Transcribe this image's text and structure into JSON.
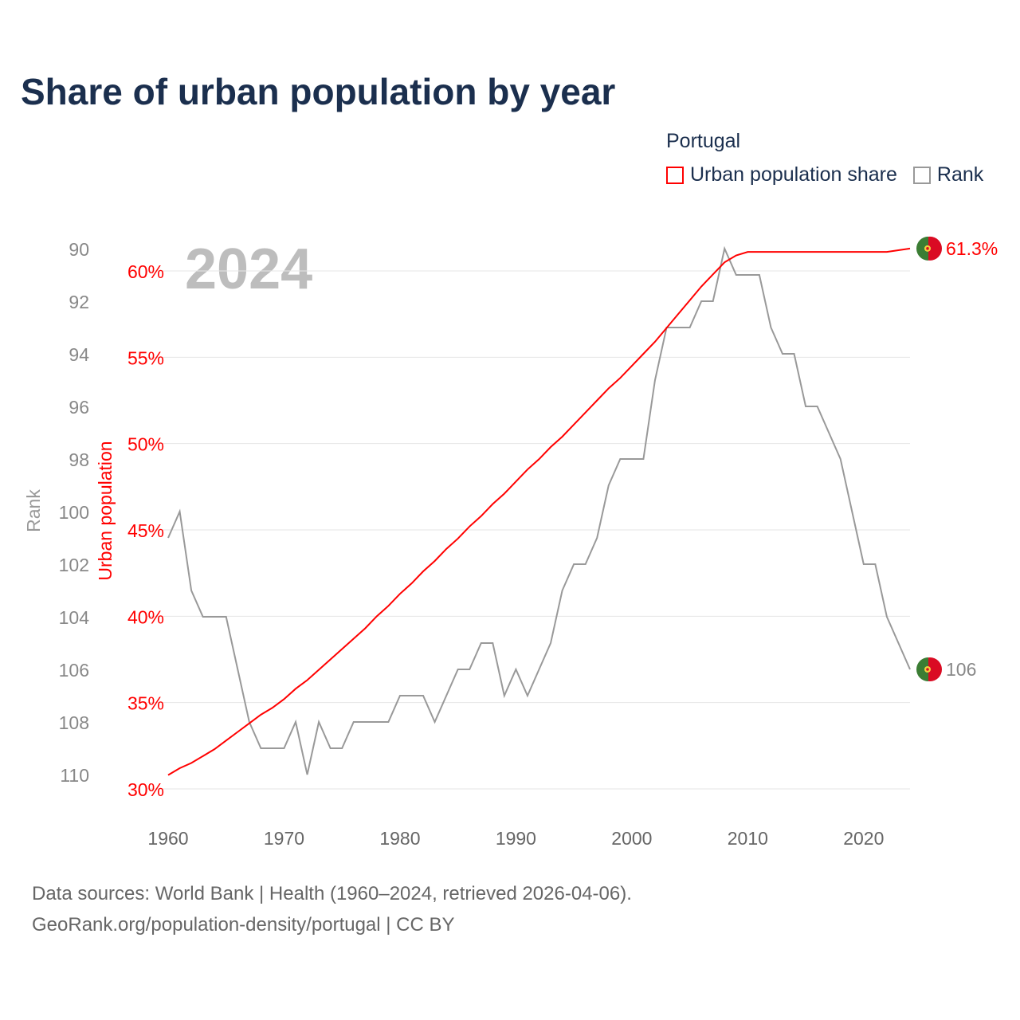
{
  "title": "Share of urban population by year",
  "legend": {
    "title": "Portugal",
    "items": [
      {
        "label": "Urban population share",
        "color": "#ff0000"
      },
      {
        "label": "Rank",
        "color": "#999999"
      }
    ]
  },
  "footer": {
    "line1": "Data sources: World Bank | Health (1960–2024, retrieved 2026-04-06).",
    "line2": "GeoRank.org/population-density/portugal | CC BY"
  },
  "chart_data": {
    "type": "line",
    "title": "Share of urban population by year",
    "year_label": "2024",
    "x": [
      1960,
      1961,
      1962,
      1963,
      1964,
      1965,
      1966,
      1967,
      1968,
      1969,
      1970,
      1971,
      1972,
      1973,
      1974,
      1975,
      1976,
      1977,
      1978,
      1979,
      1980,
      1981,
      1982,
      1983,
      1984,
      1985,
      1986,
      1987,
      1988,
      1989,
      1990,
      1991,
      1992,
      1993,
      1994,
      1995,
      1996,
      1997,
      1998,
      1999,
      2000,
      2001,
      2002,
      2003,
      2004,
      2005,
      2006,
      2007,
      2008,
      2009,
      2010,
      2011,
      2012,
      2013,
      2014,
      2015,
      2016,
      2017,
      2018,
      2019,
      2020,
      2021,
      2022,
      2023,
      2024
    ],
    "xticks": [
      "1960",
      "1970",
      "1980",
      "1990",
      "2000",
      "2010",
      "2020"
    ],
    "series": [
      {
        "name": "Urban population share",
        "axis": "right",
        "color": "#ff0000",
        "values": [
          30.8,
          31.2,
          31.5,
          31.9,
          32.3,
          32.8,
          33.3,
          33.8,
          34.3,
          34.7,
          35.2,
          35.8,
          36.3,
          36.9,
          37.5,
          38.1,
          38.7,
          39.3,
          40.0,
          40.6,
          41.3,
          41.9,
          42.6,
          43.2,
          43.9,
          44.5,
          45.2,
          45.8,
          46.5,
          47.1,
          47.8,
          48.5,
          49.1,
          49.8,
          50.4,
          51.1,
          51.8,
          52.5,
          53.2,
          53.8,
          54.5,
          55.2,
          55.9,
          56.7,
          57.5,
          58.3,
          59.1,
          59.8,
          60.5,
          60.9,
          61.1,
          61.1,
          61.1,
          61.1,
          61.1,
          61.1,
          61.1,
          61.1,
          61.1,
          61.1,
          61.1,
          61.1,
          61.1,
          61.2,
          61.3
        ],
        "end_label": "61.3%"
      },
      {
        "name": "Rank",
        "axis": "left",
        "color": "#999999",
        "values": [
          101,
          100,
          103,
          104,
          104,
          104,
          106,
          108,
          109,
          109,
          109,
          108,
          110,
          108,
          109,
          109,
          108,
          108,
          108,
          108,
          107,
          107,
          107,
          108,
          107,
          106,
          106,
          105,
          105,
          107,
          106,
          107,
          106,
          105,
          103,
          102,
          102,
          101,
          99,
          98,
          98,
          98,
          95,
          93,
          93,
          93,
          92,
          92,
          90,
          91,
          91,
          91,
          93,
          94,
          94,
          96,
          96,
          97,
          98,
          100,
          102,
          102,
          104,
          105,
          106
        ],
        "end_label": "106"
      }
    ],
    "left_axis": {
      "label": "Rank",
      "range": [
        90,
        110
      ],
      "ticks": [
        "90",
        "92",
        "94",
        "96",
        "98",
        "100",
        "102",
        "104",
        "106",
        "108",
        "110"
      ],
      "inverted": true
    },
    "right_axis": {
      "label": "Urban population",
      "range": [
        30,
        60
      ],
      "ticks": [
        "30%",
        "35%",
        "40%",
        "45%",
        "50%",
        "55%",
        "60%"
      ]
    },
    "grid": true
  }
}
